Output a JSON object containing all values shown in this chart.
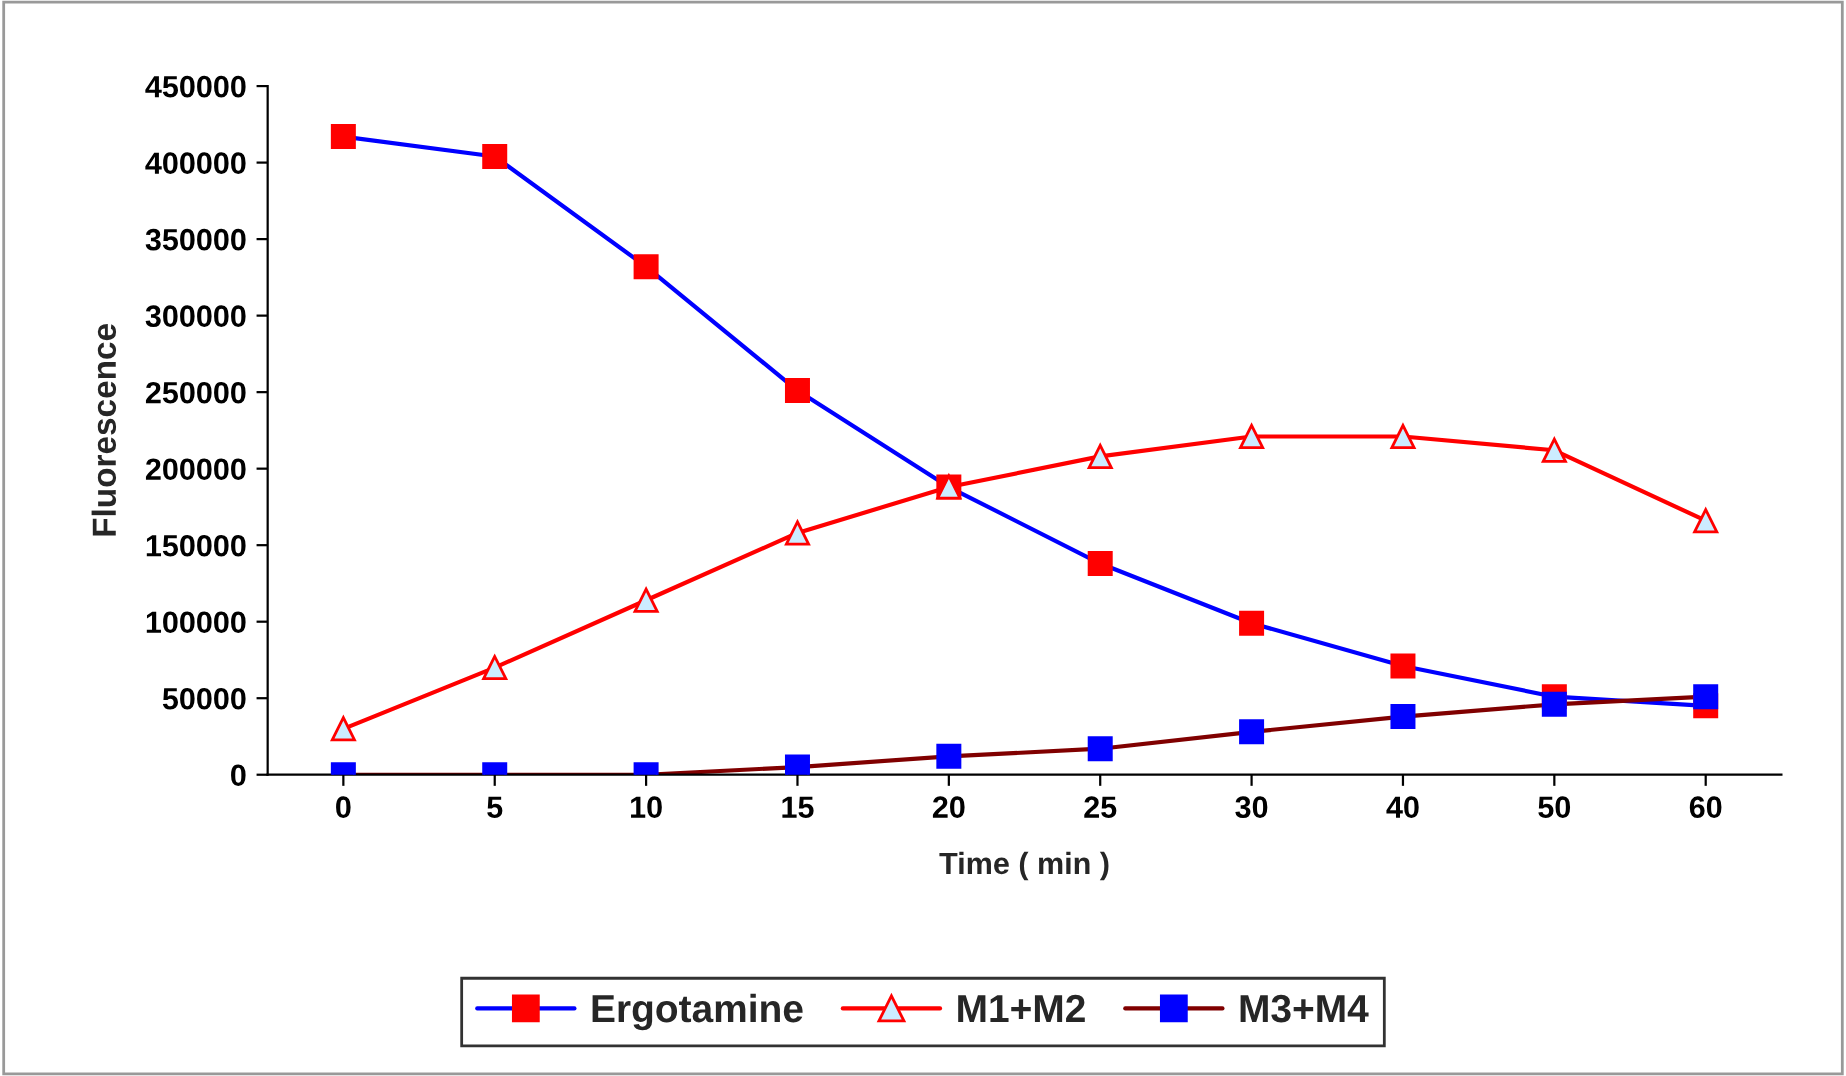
{
  "chart_data": {
    "type": "line",
    "xlabel": "Time ( min )",
    "ylabel": "Fluorescence",
    "categories": [
      "0",
      "5",
      "10",
      "15",
      "20",
      "25",
      "30",
      "40",
      "50",
      "60"
    ],
    "ylim": [
      0,
      450000
    ],
    "yticks": [
      0,
      50000,
      100000,
      150000,
      200000,
      250000,
      300000,
      350000,
      400000,
      450000
    ],
    "grid": false,
    "legend": "bottom",
    "series": [
      {
        "name": "Ergotamine",
        "color": "#0000ff",
        "colors": [
          "#ff0000",
          "#ff0000",
          "#ff0000",
          "#ff0000",
          "#ff0000",
          "#ff0000",
          "#ff0000",
          "#ff0000",
          "#ff0000",
          "#ff0000"
        ],
        "marker": "square",
        "values": [
          417000,
          404000,
          332000,
          251000,
          188000,
          138000,
          99000,
          71000,
          51000,
          45000
        ]
      },
      {
        "name": "M1+M2",
        "color": "#ff0000",
        "colors": [
          "#ccecff",
          "#ccecff",
          "#ccecff",
          "#ccecff",
          "#ccecff",
          "#ccecff",
          "#ccecff",
          "#ccecff",
          "#ccecff",
          "#ccecff"
        ],
        "marker": "triangle",
        "values": [
          30000,
          70000,
          114000,
          158000,
          188000,
          208000,
          221000,
          221000,
          212000,
          166000
        ]
      },
      {
        "name": "M3+M4",
        "color": "#800000",
        "colors": [
          "#0000ff",
          "#0000ff",
          "#0000ff",
          "#0000ff",
          "#0000ff",
          "#0000ff",
          "#0000ff",
          "#0000ff",
          "#0000ff",
          "#0000ff"
        ],
        "marker": "square",
        "values": [
          0,
          0,
          0,
          5000,
          12000,
          17000,
          28000,
          38000,
          46000,
          51000
        ]
      }
    ]
  }
}
